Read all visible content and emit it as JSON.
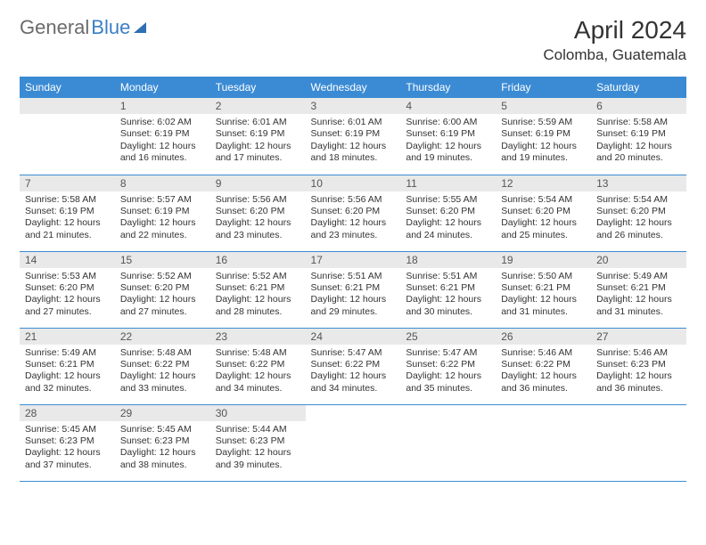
{
  "logo": {
    "text_gray": "General",
    "text_blue": "Blue"
  },
  "title": "April 2024",
  "location": "Colomba, Guatemala",
  "colors": {
    "header_bg": "#3b8bd4",
    "header_text": "#ffffff",
    "daynum_bg": "#e9e9e9",
    "border": "#3b8bd4",
    "logo_gray": "#6b6b6b",
    "logo_blue": "#3b7fc4"
  },
  "day_headers": [
    "Sunday",
    "Monday",
    "Tuesday",
    "Wednesday",
    "Thursday",
    "Friday",
    "Saturday"
  ],
  "weeks": [
    [
      null,
      {
        "n": "1",
        "sr": "Sunrise: 6:02 AM",
        "ss": "Sunset: 6:19 PM",
        "dl": "Daylight: 12 hours and 16 minutes."
      },
      {
        "n": "2",
        "sr": "Sunrise: 6:01 AM",
        "ss": "Sunset: 6:19 PM",
        "dl": "Daylight: 12 hours and 17 minutes."
      },
      {
        "n": "3",
        "sr": "Sunrise: 6:01 AM",
        "ss": "Sunset: 6:19 PM",
        "dl": "Daylight: 12 hours and 18 minutes."
      },
      {
        "n": "4",
        "sr": "Sunrise: 6:00 AM",
        "ss": "Sunset: 6:19 PM",
        "dl": "Daylight: 12 hours and 19 minutes."
      },
      {
        "n": "5",
        "sr": "Sunrise: 5:59 AM",
        "ss": "Sunset: 6:19 PM",
        "dl": "Daylight: 12 hours and 19 minutes."
      },
      {
        "n": "6",
        "sr": "Sunrise: 5:58 AM",
        "ss": "Sunset: 6:19 PM",
        "dl": "Daylight: 12 hours and 20 minutes."
      }
    ],
    [
      {
        "n": "7",
        "sr": "Sunrise: 5:58 AM",
        "ss": "Sunset: 6:19 PM",
        "dl": "Daylight: 12 hours and 21 minutes."
      },
      {
        "n": "8",
        "sr": "Sunrise: 5:57 AM",
        "ss": "Sunset: 6:19 PM",
        "dl": "Daylight: 12 hours and 22 minutes."
      },
      {
        "n": "9",
        "sr": "Sunrise: 5:56 AM",
        "ss": "Sunset: 6:20 PM",
        "dl": "Daylight: 12 hours and 23 minutes."
      },
      {
        "n": "10",
        "sr": "Sunrise: 5:56 AM",
        "ss": "Sunset: 6:20 PM",
        "dl": "Daylight: 12 hours and 23 minutes."
      },
      {
        "n": "11",
        "sr": "Sunrise: 5:55 AM",
        "ss": "Sunset: 6:20 PM",
        "dl": "Daylight: 12 hours and 24 minutes."
      },
      {
        "n": "12",
        "sr": "Sunrise: 5:54 AM",
        "ss": "Sunset: 6:20 PM",
        "dl": "Daylight: 12 hours and 25 minutes."
      },
      {
        "n": "13",
        "sr": "Sunrise: 5:54 AM",
        "ss": "Sunset: 6:20 PM",
        "dl": "Daylight: 12 hours and 26 minutes."
      }
    ],
    [
      {
        "n": "14",
        "sr": "Sunrise: 5:53 AM",
        "ss": "Sunset: 6:20 PM",
        "dl": "Daylight: 12 hours and 27 minutes."
      },
      {
        "n": "15",
        "sr": "Sunrise: 5:52 AM",
        "ss": "Sunset: 6:20 PM",
        "dl": "Daylight: 12 hours and 27 minutes."
      },
      {
        "n": "16",
        "sr": "Sunrise: 5:52 AM",
        "ss": "Sunset: 6:21 PM",
        "dl": "Daylight: 12 hours and 28 minutes."
      },
      {
        "n": "17",
        "sr": "Sunrise: 5:51 AM",
        "ss": "Sunset: 6:21 PM",
        "dl": "Daylight: 12 hours and 29 minutes."
      },
      {
        "n": "18",
        "sr": "Sunrise: 5:51 AM",
        "ss": "Sunset: 6:21 PM",
        "dl": "Daylight: 12 hours and 30 minutes."
      },
      {
        "n": "19",
        "sr": "Sunrise: 5:50 AM",
        "ss": "Sunset: 6:21 PM",
        "dl": "Daylight: 12 hours and 31 minutes."
      },
      {
        "n": "20",
        "sr": "Sunrise: 5:49 AM",
        "ss": "Sunset: 6:21 PM",
        "dl": "Daylight: 12 hours and 31 minutes."
      }
    ],
    [
      {
        "n": "21",
        "sr": "Sunrise: 5:49 AM",
        "ss": "Sunset: 6:21 PM",
        "dl": "Daylight: 12 hours and 32 minutes."
      },
      {
        "n": "22",
        "sr": "Sunrise: 5:48 AM",
        "ss": "Sunset: 6:22 PM",
        "dl": "Daylight: 12 hours and 33 minutes."
      },
      {
        "n": "23",
        "sr": "Sunrise: 5:48 AM",
        "ss": "Sunset: 6:22 PM",
        "dl": "Daylight: 12 hours and 34 minutes."
      },
      {
        "n": "24",
        "sr": "Sunrise: 5:47 AM",
        "ss": "Sunset: 6:22 PM",
        "dl": "Daylight: 12 hours and 34 minutes."
      },
      {
        "n": "25",
        "sr": "Sunrise: 5:47 AM",
        "ss": "Sunset: 6:22 PM",
        "dl": "Daylight: 12 hours and 35 minutes."
      },
      {
        "n": "26",
        "sr": "Sunrise: 5:46 AM",
        "ss": "Sunset: 6:22 PM",
        "dl": "Daylight: 12 hours and 36 minutes."
      },
      {
        "n": "27",
        "sr": "Sunrise: 5:46 AM",
        "ss": "Sunset: 6:23 PM",
        "dl": "Daylight: 12 hours and 36 minutes."
      }
    ],
    [
      {
        "n": "28",
        "sr": "Sunrise: 5:45 AM",
        "ss": "Sunset: 6:23 PM",
        "dl": "Daylight: 12 hours and 37 minutes."
      },
      {
        "n": "29",
        "sr": "Sunrise: 5:45 AM",
        "ss": "Sunset: 6:23 PM",
        "dl": "Daylight: 12 hours and 38 minutes."
      },
      {
        "n": "30",
        "sr": "Sunrise: 5:44 AM",
        "ss": "Sunset: 6:23 PM",
        "dl": "Daylight: 12 hours and 39 minutes."
      },
      null,
      null,
      null,
      null
    ]
  ]
}
